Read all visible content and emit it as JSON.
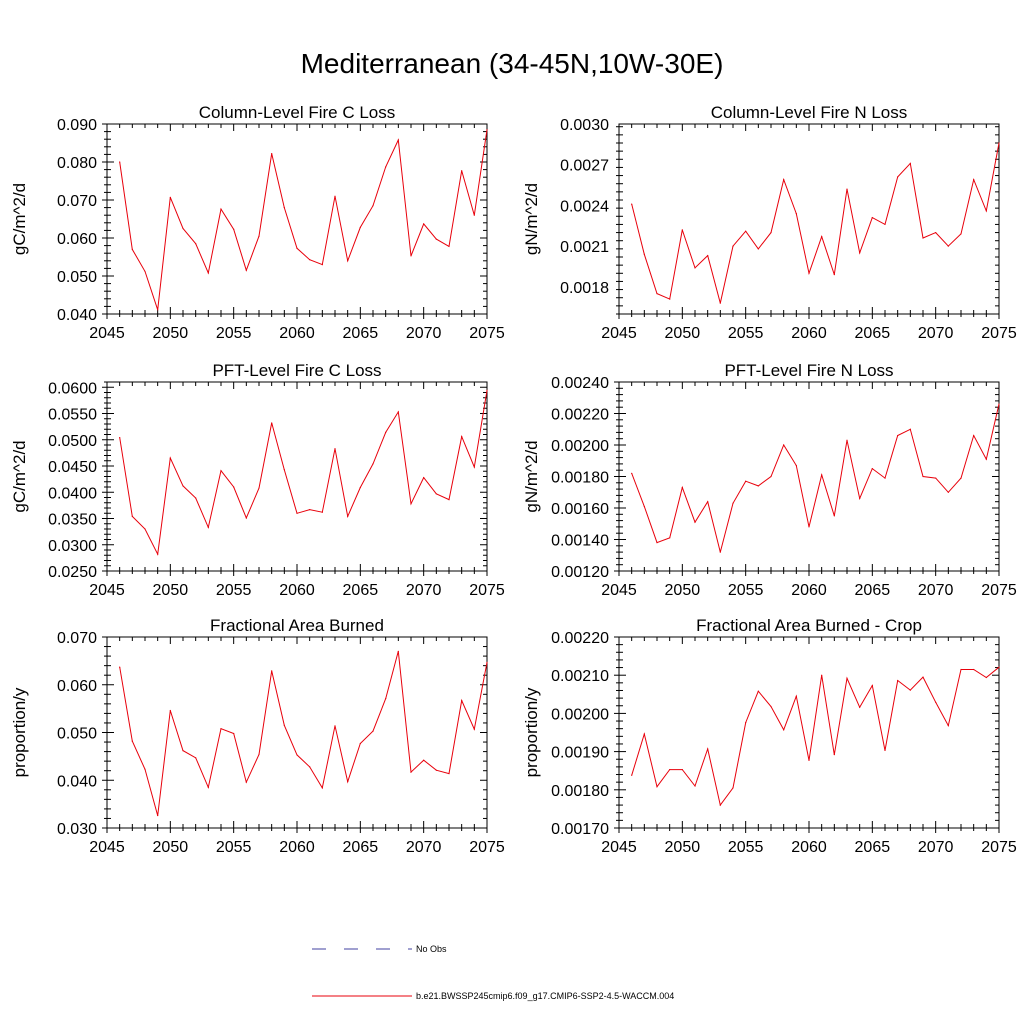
{
  "figure": {
    "title": "Mediterranean (34-45N,10W-30E)",
    "series_color": "#e8000b",
    "obs_color": "#4040a0"
  },
  "legend": {
    "obs_label": "No Obs",
    "model_label": "b.e21.BWSSP245cmip6.f09_g17.CMIP6-SSP2-4.5-WACCM.004"
  },
  "chart_data": [
    {
      "type": "line",
      "title": "Column-Level Fire C Loss",
      "xlabel": "",
      "ylabel": "gC/m^2/d",
      "xlim": [
        2045,
        2075
      ],
      "ylim": [
        0.04,
        0.09
      ],
      "xticks": [
        2045,
        2050,
        2055,
        2060,
        2065,
        2070,
        2075
      ],
      "yticks": [
        0.04,
        0.05,
        0.06,
        0.07,
        0.08,
        0.09
      ],
      "ytick_labels": [
        "0.040",
        "0.050",
        "0.060",
        "0.070",
        "0.080",
        "0.090"
      ],
      "x": [
        2046,
        2047,
        2048,
        2049,
        2050,
        2051,
        2052,
        2053,
        2054,
        2055,
        2056,
        2057,
        2058,
        2059,
        2060,
        2061,
        2062,
        2063,
        2064,
        2065,
        2066,
        2067,
        2068,
        2069,
        2070,
        2071,
        2072,
        2073,
        2074,
        2075
      ],
      "values": [
        0.08,
        0.057,
        0.0512,
        0.0411,
        0.0707,
        0.0625,
        0.0585,
        0.0508,
        0.0676,
        0.0623,
        0.0515,
        0.0605,
        0.0822,
        0.068,
        0.0573,
        0.0543,
        0.053,
        0.071,
        0.054,
        0.0628,
        0.0685,
        0.0787,
        0.0858,
        0.0553,
        0.0637,
        0.0597,
        0.0578,
        0.0777,
        0.066,
        0.0885
      ]
    },
    {
      "type": "line",
      "title": "Column-Level Fire N Loss",
      "xlabel": "",
      "ylabel": "gN/m^2/d",
      "xlim": [
        2045,
        2075
      ],
      "ylim": [
        0.0016,
        0.003
      ],
      "xticks": [
        2045,
        2050,
        2055,
        2060,
        2065,
        2070,
        2075
      ],
      "yticks": [
        0.0018,
        0.0021,
        0.0024,
        0.0027,
        0.003
      ],
      "ytick_labels": [
        "0.0018",
        "0.0021",
        "0.0024",
        "0.0027",
        "0.0030"
      ],
      "x": [
        2046,
        2047,
        2048,
        2049,
        2050,
        2051,
        2052,
        2053,
        2054,
        2055,
        2056,
        2057,
        2058,
        2059,
        2060,
        2061,
        2062,
        2063,
        2064,
        2065,
        2066,
        2067,
        2068,
        2069,
        2070,
        2071,
        2072,
        2073,
        2074,
        2075
      ],
      "values": [
        0.00241,
        0.00204,
        0.00175,
        0.00171,
        0.00222,
        0.00194,
        0.00203,
        0.00168,
        0.0021,
        0.00221,
        0.00208,
        0.0022,
        0.00259,
        0.00234,
        0.0019,
        0.00217,
        0.00189,
        0.00252,
        0.00205,
        0.00231,
        0.00226,
        0.00261,
        0.00271,
        0.00216,
        0.0022,
        0.0021,
        0.00219,
        0.00259,
        0.00236,
        0.00286
      ]
    },
    {
      "type": "line",
      "title": "PFT-Level Fire C Loss",
      "xlabel": "",
      "ylabel": "gC/m^2/d",
      "xlim": [
        2045,
        2075
      ],
      "ylim": [
        0.025,
        0.061
      ],
      "xticks": [
        2045,
        2050,
        2055,
        2060,
        2065,
        2070,
        2075
      ],
      "yticks": [
        0.025,
        0.03,
        0.035,
        0.04,
        0.045,
        0.05,
        0.055,
        0.06
      ],
      "ytick_labels": [
        "0.0250",
        "0.0300",
        "0.0350",
        "0.0400",
        "0.0450",
        "0.0500",
        "0.0550",
        "0.0600"
      ],
      "x": [
        2046,
        2047,
        2048,
        2049,
        2050,
        2051,
        2052,
        2053,
        2054,
        2055,
        2056,
        2057,
        2058,
        2059,
        2060,
        2061,
        2062,
        2063,
        2064,
        2065,
        2066,
        2067,
        2068,
        2069,
        2070,
        2071,
        2072,
        2073,
        2074,
        2075
      ],
      "values": [
        0.0504,
        0.0354,
        0.033,
        0.0282,
        0.0465,
        0.0412,
        0.0389,
        0.0333,
        0.0441,
        0.041,
        0.0351,
        0.0408,
        0.0532,
        0.0443,
        0.036,
        0.0367,
        0.0362,
        0.0483,
        0.0354,
        0.0409,
        0.0454,
        0.0514,
        0.0553,
        0.0378,
        0.0428,
        0.0397,
        0.0386,
        0.0506,
        0.0448,
        0.0594
      ]
    },
    {
      "type": "line",
      "title": "PFT-Level Fire N Loss",
      "xlabel": "",
      "ylabel": "gN/m^2/d",
      "xlim": [
        2045,
        2075
      ],
      "ylim": [
        0.0012,
        0.0024
      ],
      "xticks": [
        2045,
        2050,
        2055,
        2060,
        2065,
        2070,
        2075
      ],
      "yticks": [
        0.0012,
        0.0014,
        0.0016,
        0.0018,
        0.002,
        0.0022,
        0.0024
      ],
      "ytick_labels": [
        "0.00120",
        "0.00140",
        "0.00160",
        "0.00180",
        "0.00200",
        "0.00220",
        "0.00240"
      ],
      "x": [
        2046,
        2047,
        2048,
        2049,
        2050,
        2051,
        2052,
        2053,
        2054,
        2055,
        2056,
        2057,
        2058,
        2059,
        2060,
        2061,
        2062,
        2063,
        2064,
        2065,
        2066,
        2067,
        2068,
        2069,
        2070,
        2071,
        2072,
        2073,
        2074,
        2075
      ],
      "values": [
        0.00182,
        0.00161,
        0.00138,
        0.00141,
        0.00173,
        0.00151,
        0.00164,
        0.00132,
        0.00163,
        0.00177,
        0.00174,
        0.0018,
        0.002,
        0.00187,
        0.00148,
        0.00181,
        0.00155,
        0.00203,
        0.00166,
        0.00185,
        0.00179,
        0.00206,
        0.0021,
        0.0018,
        0.00179,
        0.0017,
        0.00179,
        0.00206,
        0.00191,
        0.00226
      ]
    },
    {
      "type": "line",
      "title": "Fractional Area Burned",
      "xlabel": "",
      "ylabel": "proportion/y",
      "xlim": [
        2045,
        2075
      ],
      "ylim": [
        0.03,
        0.07
      ],
      "xticks": [
        2045,
        2050,
        2055,
        2060,
        2065,
        2070,
        2075
      ],
      "yticks": [
        0.03,
        0.04,
        0.05,
        0.06,
        0.07
      ],
      "ytick_labels": [
        "0.030",
        "0.040",
        "0.050",
        "0.060",
        "0.070"
      ],
      "x": [
        2046,
        2047,
        2048,
        2049,
        2050,
        2051,
        2052,
        2053,
        2054,
        2055,
        2056,
        2057,
        2058,
        2059,
        2060,
        2061,
        2062,
        2063,
        2064,
        2065,
        2066,
        2067,
        2068,
        2069,
        2070,
        2071,
        2072,
        2073,
        2074,
        2075
      ],
      "values": [
        0.0637,
        0.0482,
        0.0423,
        0.0326,
        0.0546,
        0.0462,
        0.0447,
        0.0385,
        0.0508,
        0.0498,
        0.0396,
        0.0454,
        0.0629,
        0.0515,
        0.0453,
        0.0428,
        0.0384,
        0.0514,
        0.0397,
        0.0477,
        0.0503,
        0.0571,
        0.067,
        0.0417,
        0.0442,
        0.0421,
        0.0414,
        0.0567,
        0.0507,
        0.0647
      ]
    },
    {
      "type": "line",
      "title": "Fractional Area Burned - Crop",
      "xlabel": "",
      "ylabel": "proportion/y",
      "xlim": [
        2045,
        2075
      ],
      "ylim": [
        0.0017,
        0.0022
      ],
      "xticks": [
        2045,
        2050,
        2055,
        2060,
        2065,
        2070,
        2075
      ],
      "yticks": [
        0.0017,
        0.0018,
        0.0019,
        0.002,
        0.0021,
        0.0022
      ],
      "ytick_labels": [
        "0.00170",
        "0.00180",
        "0.00190",
        "0.00200",
        "0.00210",
        "0.00220"
      ],
      "x": [
        2046,
        2047,
        2048,
        2049,
        2050,
        2051,
        2052,
        2053,
        2054,
        2055,
        2056,
        2057,
        2058,
        2059,
        2060,
        2061,
        2062,
        2063,
        2064,
        2065,
        2066,
        2067,
        2068,
        2069,
        2070,
        2071,
        2072,
        2073,
        2074,
        2075
      ],
      "values": [
        0.001838,
        0.001946,
        0.001808,
        0.001853,
        0.001853,
        0.00181,
        0.001907,
        0.00176,
        0.001805,
        0.001976,
        0.002058,
        0.002018,
        0.001957,
        0.002045,
        0.001877,
        0.0021,
        0.001892,
        0.002092,
        0.002016,
        0.002073,
        0.001903,
        0.002086,
        0.002061,
        0.002095,
        0.002029,
        0.001968,
        0.002115,
        0.002115,
        0.002094,
        0.002121
      ]
    }
  ]
}
